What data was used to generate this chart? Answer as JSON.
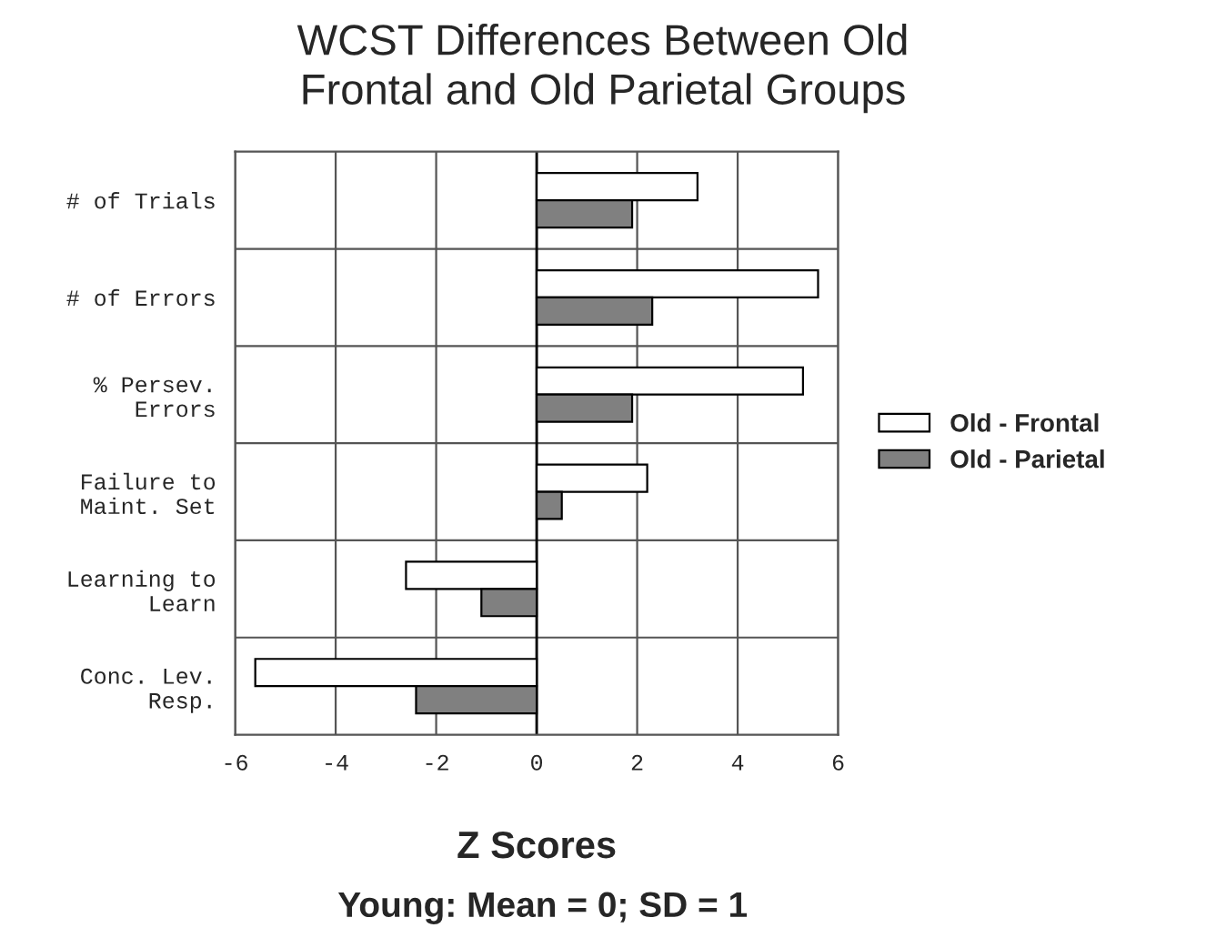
{
  "chart_data": {
    "type": "bar",
    "orientation": "horizontal",
    "title": "WCST Differences Between Old\nFrontal and Old Parietal Groups",
    "xlabel": "Z Scores",
    "annotations": [
      "Young: Mean = 0; SD = 1"
    ],
    "categories": [
      "# of Trials",
      "# of Errors",
      "% Persev.\nErrors",
      "Failure to\nMaint. Set",
      "Learning to\nLearn",
      "Conc. Lev.\nResp."
    ],
    "series": [
      {
        "name": "Old - Frontal",
        "color": "#ffffff",
        "values": [
          3.2,
          5.6,
          5.3,
          2.2,
          -2.6,
          -5.6
        ]
      },
      {
        "name": "Old - Parietal",
        "color": "#808080",
        "values": [
          1.9,
          2.3,
          1.9,
          0.5,
          -1.1,
          -2.4
        ]
      }
    ],
    "xlim": [
      -6,
      6
    ],
    "xticks": [
      -6,
      -4,
      -2,
      0,
      2,
      4,
      6
    ],
    "grid": true,
    "legend": "right"
  }
}
